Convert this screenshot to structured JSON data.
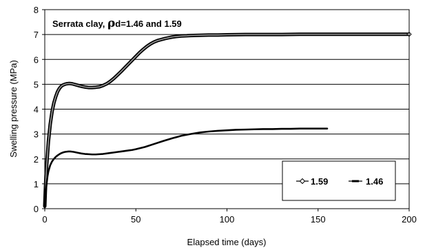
{
  "chart_data": {
    "type": "line",
    "title": "",
    "annotation": {
      "prefix": "Serrata clay, ",
      "symbol": "ρ",
      "suffix": "d=1.46 and 1.59"
    },
    "xlabel": "Elapsed time (days)",
    "ylabel": "Swelling pressure (MPa)",
    "xlim": [
      0,
      200
    ],
    "ylim": [
      0,
      8
    ],
    "xticks": [
      0,
      50,
      100,
      150,
      200
    ],
    "yticks": [
      0,
      1,
      2,
      3,
      4,
      5,
      6,
      7,
      8
    ],
    "grid": "horizontal",
    "legend_position": "bottom-right",
    "series": [
      {
        "name": "1.59",
        "marker": "open-diamond",
        "color": "#000000",
        "x": [
          0,
          0.3,
          0.6,
          1,
          1.5,
          2,
          3,
          4,
          5,
          6,
          7,
          8,
          9,
          10,
          11,
          12,
          13,
          14,
          15,
          16,
          17,
          18,
          19,
          20,
          22,
          24,
          26,
          28,
          30,
          32,
          34,
          36,
          38,
          40,
          42,
          44,
          46,
          48,
          50,
          52,
          54,
          56,
          58,
          60,
          62,
          64,
          66,
          68,
          70,
          72,
          75,
          78,
          80,
          85,
          90,
          95,
          100,
          110,
          120,
          130,
          140,
          150,
          160,
          170,
          180,
          190,
          200
        ],
        "y": [
          0.1,
          0.7,
          1.2,
          1.7,
          2.2,
          2.7,
          3.4,
          3.9,
          4.25,
          4.5,
          4.7,
          4.83,
          4.92,
          4.97,
          5.0,
          5.02,
          5.03,
          5.03,
          5.02,
          5.0,
          4.98,
          4.96,
          4.94,
          4.92,
          4.89,
          4.87,
          4.87,
          4.88,
          4.9,
          4.95,
          5.02,
          5.12,
          5.24,
          5.38,
          5.52,
          5.67,
          5.82,
          5.97,
          6.12,
          6.27,
          6.4,
          6.52,
          6.62,
          6.7,
          6.76,
          6.8,
          6.84,
          6.87,
          6.9,
          6.92,
          6.94,
          6.95,
          6.96,
          6.97,
          6.98,
          6.98,
          6.99,
          7.0,
          7.0,
          7.0,
          7.01,
          7.01,
          7.01,
          7.01,
          7.01,
          7.01,
          7.01
        ]
      },
      {
        "name": "1.46",
        "marker": "dash",
        "color": "#000000",
        "x": [
          0,
          0.3,
          0.6,
          1,
          1.5,
          2,
          3,
          4,
          5,
          6,
          7,
          8,
          9,
          10,
          11,
          12,
          13,
          14,
          15,
          16,
          18,
          20,
          22,
          24,
          26,
          28,
          30,
          32,
          34,
          36,
          38,
          40,
          42,
          44,
          46,
          48,
          50,
          55,
          60,
          65,
          70,
          75,
          80,
          85,
          90,
          95,
          100,
          105,
          110,
          115,
          120,
          125,
          130,
          135,
          140,
          145,
          150,
          155
        ],
        "y": [
          0.05,
          0.4,
          0.7,
          1.0,
          1.3,
          1.5,
          1.75,
          1.9,
          2.0,
          2.08,
          2.14,
          2.19,
          2.23,
          2.26,
          2.28,
          2.29,
          2.3,
          2.3,
          2.29,
          2.28,
          2.25,
          2.22,
          2.2,
          2.19,
          2.18,
          2.18,
          2.19,
          2.2,
          2.22,
          2.24,
          2.26,
          2.28,
          2.3,
          2.32,
          2.34,
          2.36,
          2.39,
          2.48,
          2.6,
          2.72,
          2.83,
          2.93,
          3.0,
          3.06,
          3.1,
          3.13,
          3.15,
          3.17,
          3.18,
          3.19,
          3.2,
          3.2,
          3.21,
          3.21,
          3.22,
          3.22,
          3.22,
          3.22
        ]
      }
    ]
  }
}
